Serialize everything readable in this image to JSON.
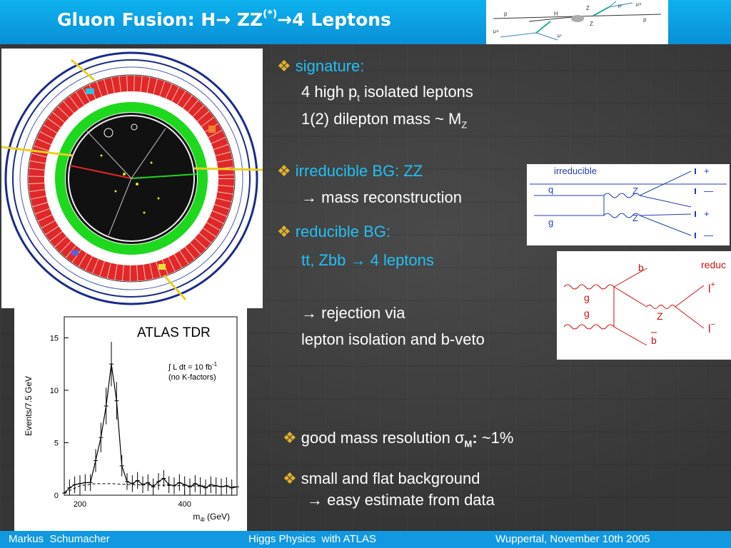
{
  "title": {
    "main": "Gluon Fusion:  H",
    "arrow1": "→",
    "zz": " ZZ",
    "star": "(*)",
    "arrow2": "→",
    "rest": "4 Leptons"
  },
  "title_diagram": {
    "labels": [
      "p",
      "H",
      "Z",
      "p",
      "Z",
      "μ+",
      "μ-",
      "μ-",
      "μ+"
    ]
  },
  "bullet_icon": "❖",
  "arrow_icon": "→",
  "signature": {
    "heading": "signature:",
    "line1_pre": "4 high p",
    "line1_sub": "t",
    "line1_post": " isolated leptons",
    "line2_pre": "1(2) dilepton mass ~ M",
    "line2_sub": "Z"
  },
  "irreducible": {
    "heading": "irreducible BG: ZZ",
    "line1": " mass reconstruction"
  },
  "reducible": {
    "heading": "reducible BG:",
    "line1_pre": "tt, Zbb ",
    "line1_post": " 4 leptons",
    "line2": " rejection via",
    "line3": "lepton isolation and b-veto"
  },
  "resolution": {
    "pre": "good mass resolution σ",
    "sub": "M",
    "colon": ":",
    "post": " ~1%"
  },
  "background": {
    "line1": "small and flat background",
    "line2": " easy estimate from data"
  },
  "irr_diagram": {
    "title": "irreducible",
    "q": "q",
    "g": "g",
    "z1": "Z",
    "z2": "Z",
    "plus1": "+",
    "minus1": "—",
    "plus2": "+",
    "minus2": "—"
  },
  "red_diagram": {
    "title": "reduc",
    "b": "b",
    "bbar": "b",
    "g1": "g",
    "g2": "g",
    "z": "Z",
    "lplus": "l",
    "lplus_sup": "+",
    "lminus": "l",
    "lminus_sup": "−"
  },
  "histogram": {
    "atlas_label": "ATLAS TDR",
    "lumi_pre": "∫ L dt = 10 fb",
    "lumi_sup": "-1",
    "kfactors": "(no K-factors)"
  },
  "chart_data": {
    "type": "line",
    "title": "ATLAS TDR",
    "xlabel": "m4l (GeV)",
    "xlabel_main": "m",
    "xlabel_sub": "4l",
    "xlabel_unit": " (GeV)",
    "ylabel": "Events/7.5 GeV",
    "xlim": [
      170,
      500
    ],
    "ylim": [
      0,
      17
    ],
    "xticks": [
      200,
      400
    ],
    "yticks": [
      0,
      5,
      10,
      15
    ],
    "series": [
      {
        "x": [
          170,
          180,
          190,
          200,
          210,
          220,
          230,
          240,
          250,
          260,
          270,
          280,
          290,
          300,
          310,
          320,
          330,
          340,
          350,
          360,
          370,
          380,
          390,
          400,
          410,
          420,
          430,
          440,
          450,
          460,
          470,
          480,
          490,
          500
        ],
        "values": [
          0.2,
          0.7,
          1.0,
          1.1,
          1.2,
          1.2,
          3.3,
          5.5,
          8.5,
          12.5,
          9.0,
          2.8,
          1.3,
          1.1,
          1.4,
          1.0,
          1.2,
          0.8,
          1.3,
          1.6,
          1.0,
          0.9,
          1.2,
          1.0,
          0.8,
          1.1,
          0.9,
          0.7,
          1.0,
          0.9,
          0.8,
          0.9,
          0.7,
          0.8
        ]
      },
      {
        "style": "dashed",
        "x": [
          170,
          200,
          230,
          260,
          300,
          350,
          400,
          450,
          500
        ],
        "values": [
          0.2,
          0.9,
          1.1,
          1.1,
          1.0,
          0.95,
          0.9,
          0.85,
          0.8
        ]
      }
    ],
    "annotations": [
      "∫ L dt = 10 fb-1",
      "(no K-factors)"
    ]
  },
  "footer": {
    "author": "Markus  Schumacher",
    "talk": "Higgs Physics  with ATLAS",
    "venue": "Wuppertal, November 10th 2005"
  },
  "colors": {
    "title_bar": "#0db2ee",
    "footer": "#1198e0",
    "heading_cyan": "#22c0f5",
    "bullet": "#e2b22b"
  }
}
